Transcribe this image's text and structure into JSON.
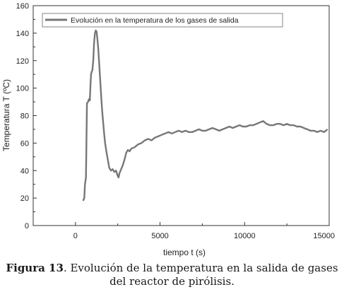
{
  "chart_data": {
    "type": "line",
    "title": "",
    "xlabel": "tiempo t (s)",
    "ylabel": "Temperatura T (ºC)",
    "xlim": [
      -2500,
      15000
    ],
    "ylim": [
      0,
      160
    ],
    "x_ticks": [
      "0",
      "5000",
      "10000",
      "15000"
    ],
    "y_ticks": [
      "0",
      "20",
      "40",
      "60",
      "80",
      "100",
      "120",
      "140",
      "160"
    ],
    "grid": false,
    "legend_position": "top",
    "line_color": "#777777",
    "series": [
      {
        "name": "Evolución en la temperatura de los gases de salida",
        "x": [
          450,
          520,
          560,
          620,
          680,
          740,
          800,
          850,
          880,
          920,
          960,
          1000,
          1050,
          1100,
          1150,
          1200,
          1250,
          1300,
          1350,
          1400,
          1450,
          1500,
          1550,
          1600,
          1650,
          1700,
          1750,
          1800,
          1850,
          1900,
          2000,
          2100,
          2200,
          2300,
          2400,
          2500,
          2550,
          2600,
          2700,
          2800,
          2900,
          3000,
          3100,
          3200,
          3300,
          3500,
          3700,
          3900,
          4100,
          4300,
          4500,
          4700,
          4900,
          5100,
          5300,
          5500,
          5700,
          5900,
          6100,
          6300,
          6500,
          6700,
          6900,
          7100,
          7300,
          7500,
          7700,
          7900,
          8100,
          8300,
          8500,
          8700,
          8900,
          9100,
          9300,
          9500,
          9700,
          9900,
          10100,
          10300,
          10500,
          10700,
          10900,
          11100,
          11300,
          11500,
          11700,
          11900,
          12100,
          12300,
          12500,
          12700,
          12900,
          13100,
          13300,
          13500,
          13700,
          13900,
          14100,
          14300,
          14500,
          14700,
          14900
        ],
        "values": [
          18,
          20,
          30,
          35,
          89,
          90,
          92,
          91,
          100,
          110,
          112,
          113,
          120,
          133,
          140,
          142,
          141,
          135,
          128,
          118,
          108,
          98,
          88,
          80,
          73,
          66,
          60,
          56,
          52,
          49,
          42,
          40,
          41,
          39,
          40,
          36,
          35,
          38,
          41,
          44,
          48,
          53,
          55,
          54,
          56,
          57,
          59,
          60,
          62,
          63,
          62,
          64,
          65,
          66,
          67,
          68,
          67,
          68,
          69,
          68,
          69,
          68,
          68,
          69,
          70,
          69,
          69,
          70,
          71,
          70,
          69,
          70,
          71,
          72,
          71,
          72,
          73,
          72,
          72,
          73,
          73,
          74,
          75,
          76,
          74,
          73,
          73,
          74,
          74,
          73,
          74,
          73,
          73,
          72,
          72,
          71,
          70,
          69,
          69,
          68,
          69,
          68,
          70
        ]
      }
    ]
  },
  "caption": {
    "figure_label": "Figura 13",
    "line1": ". Evolución de la temperatura en la salida de gases",
    "line2": "del reactor de pirólisis."
  }
}
